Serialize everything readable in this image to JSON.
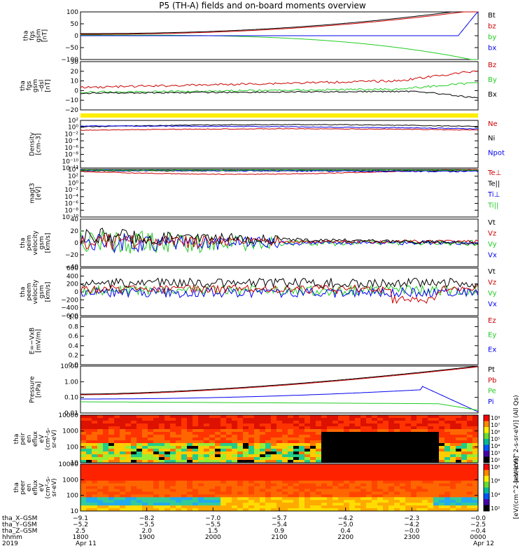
{
  "title": "P5 (TH-A) fields and on-board moments overview",
  "colors": {
    "black": "#000000",
    "red": "#cc0000",
    "green": "#22cc22",
    "blue": "#0000ee",
    "yellow": "#ffee00"
  },
  "chart_data": [
    {
      "type": "line",
      "ylabel": [
        "tha",
        "fgs",
        "gsm",
        "[nT]"
      ],
      "yticks": [
        "100",
        "50",
        "0",
        "−50",
        "−100"
      ],
      "ylim": [
        -100,
        100
      ],
      "legend": [
        {
          "name": "Bt",
          "color": "black"
        },
        {
          "name": "bz",
          "color": "red"
        },
        {
          "name": "by",
          "color": "green"
        },
        {
          "name": "bx",
          "color": "blue"
        }
      ]
    },
    {
      "type": "line",
      "ylabel": [
        "tha",
        "fgs",
        "gsm",
        "–dsl",
        "[nT]"
      ],
      "yticks": [
        "30",
        "20",
        "10",
        "0",
        "−10",
        "−20"
      ],
      "ylim": [
        -25,
        30
      ],
      "legend": [
        {
          "name": "Bz",
          "color": "red"
        },
        {
          "name": "By",
          "color": "green"
        },
        {
          "name": "Bx",
          "color": "black"
        }
      ]
    },
    {
      "type": "line",
      "ylabel": [
        "Density",
        "[cm–3]"
      ],
      "yticks": [
        "10²",
        "10⁰",
        "10⁻²",
        "10⁻⁴",
        "10⁻⁶",
        "10⁻⁸",
        "10⁻¹⁰",
        "10⁻¹²"
      ],
      "scale": "log",
      "legend": [
        {
          "name": "Ne",
          "color": "red"
        },
        {
          "name": "Ni",
          "color": "black"
        },
        {
          "name": "Npot",
          "color": "blue"
        }
      ]
    },
    {
      "type": "line",
      "ylabel": [
        "magt3",
        "[eV]"
      ],
      "yticks": [
        "10⁴",
        "10²",
        "10⁰",
        "10⁻²",
        "10⁻⁴",
        "10⁻⁶",
        "10⁻⁸",
        "10⁻¹⁰"
      ],
      "scale": "log",
      "legend": [
        {
          "name": "Te⊥",
          "color": "red"
        },
        {
          "name": "Te||",
          "color": "black"
        },
        {
          "name": "Ti⊥",
          "color": "blue"
        },
        {
          "name": "Ti||",
          "color": "green"
        }
      ]
    },
    {
      "type": "line",
      "ylabel": [
        "tha",
        "peim",
        "velocity",
        "gsm",
        "[km/s]"
      ],
      "yticks": [
        "40",
        "20",
        "0",
        "−20",
        "−40"
      ],
      "ylim": [
        -40,
        40
      ],
      "legend": [
        {
          "name": "Vt",
          "color": "black"
        },
        {
          "name": "Vz",
          "color": "red"
        },
        {
          "name": "Vy",
          "color": "green"
        },
        {
          "name": "Vx",
          "color": "blue"
        }
      ]
    },
    {
      "type": "line",
      "ylabel": [
        "tha",
        "peem",
        "velocity",
        "gsm",
        "[km/s]"
      ],
      "yticks": [
        "600",
        "400",
        "200",
        "0",
        "−200",
        "−400",
        "−600"
      ],
      "ylim": [
        -600,
        600
      ],
      "legend": [
        {
          "name": "Vt",
          "color": "black"
        },
        {
          "name": "Vz",
          "color": "red"
        },
        {
          "name": "Vy",
          "color": "green"
        },
        {
          "name": "Vx",
          "color": "blue"
        }
      ]
    },
    {
      "type": "line",
      "ylabel": [
        "E=−VxB",
        "[mV/m]"
      ],
      "yticks": [
        "1.0",
        "0.8",
        "0.6",
        "0.4",
        "0.2",
        "0.0"
      ],
      "ylim": [
        0,
        1
      ],
      "legend": [
        {
          "name": "Ez",
          "color": "red"
        },
        {
          "name": "Ey",
          "color": "green"
        },
        {
          "name": "Ex",
          "color": "blue"
        }
      ]
    },
    {
      "type": "line",
      "ylabel": [
        "Pressure",
        "[nPa]"
      ],
      "yticks": [
        "10.00",
        "1.00",
        "0.10",
        "0.01"
      ],
      "scale": "log",
      "legend": [
        {
          "name": "Pt",
          "color": "black"
        },
        {
          "name": "Pb",
          "color": "red"
        },
        {
          "name": "Pe",
          "color": "green"
        },
        {
          "name": "Pi",
          "color": "blue"
        }
      ]
    },
    {
      "type": "heatmap",
      "ylabel": [
        "tha",
        "peir",
        "en",
        "eflux",
        "eV",
        "(cm²-s-",
        "sr-eV)"
      ],
      "yticks": [
        "10000",
        "1000",
        "100",
        "10"
      ],
      "colorbar_ticks": [
        "10⁸",
        "10⁷",
        "10⁶",
        "10⁵",
        "10⁴",
        "10³",
        "10²"
      ],
      "colorbar_label": "[eV/(cm^2-s-sr-eV)] (All Qs)"
    },
    {
      "type": "heatmap",
      "ylabel": [
        "tha",
        "peer",
        "en",
        "eflux",
        "eV",
        "(cm²-s-",
        "sr-eV)"
      ],
      "yticks": [
        "10000",
        "1000",
        "100",
        "10"
      ],
      "colorbar_ticks": [
        "10⁸",
        "10⁶",
        "10⁴",
        "10²"
      ],
      "colorbar_label": "[eV/(cm^2-s-sr-eV)]"
    }
  ],
  "xaxis": {
    "row_labels": [
      "tha_X–GSM",
      "tha_Y–GSM",
      "tha_Z–GSM",
      "hhmm",
      "2019"
    ],
    "columns": [
      [
        "−9.1",
        "−5.2",
        "2.5",
        "1800",
        "Apr 11"
      ],
      [
        "−8.2",
        "−5.5",
        "2.0",
        "1900",
        ""
      ],
      [
        "−7.0",
        "−5.5",
        "1.5",
        "2000",
        ""
      ],
      [
        "−5.7",
        "−5.4",
        "0.9",
        "2100",
        ""
      ],
      [
        "−4.2",
        "−5.0",
        "0.4",
        "2200",
        ""
      ],
      [
        "−2.3",
        "−4.2",
        "−0.0",
        "2300",
        ""
      ],
      [
        "−0.0",
        "−2.5",
        "−0.4",
        "0000",
        "Apr 12"
      ]
    ]
  }
}
